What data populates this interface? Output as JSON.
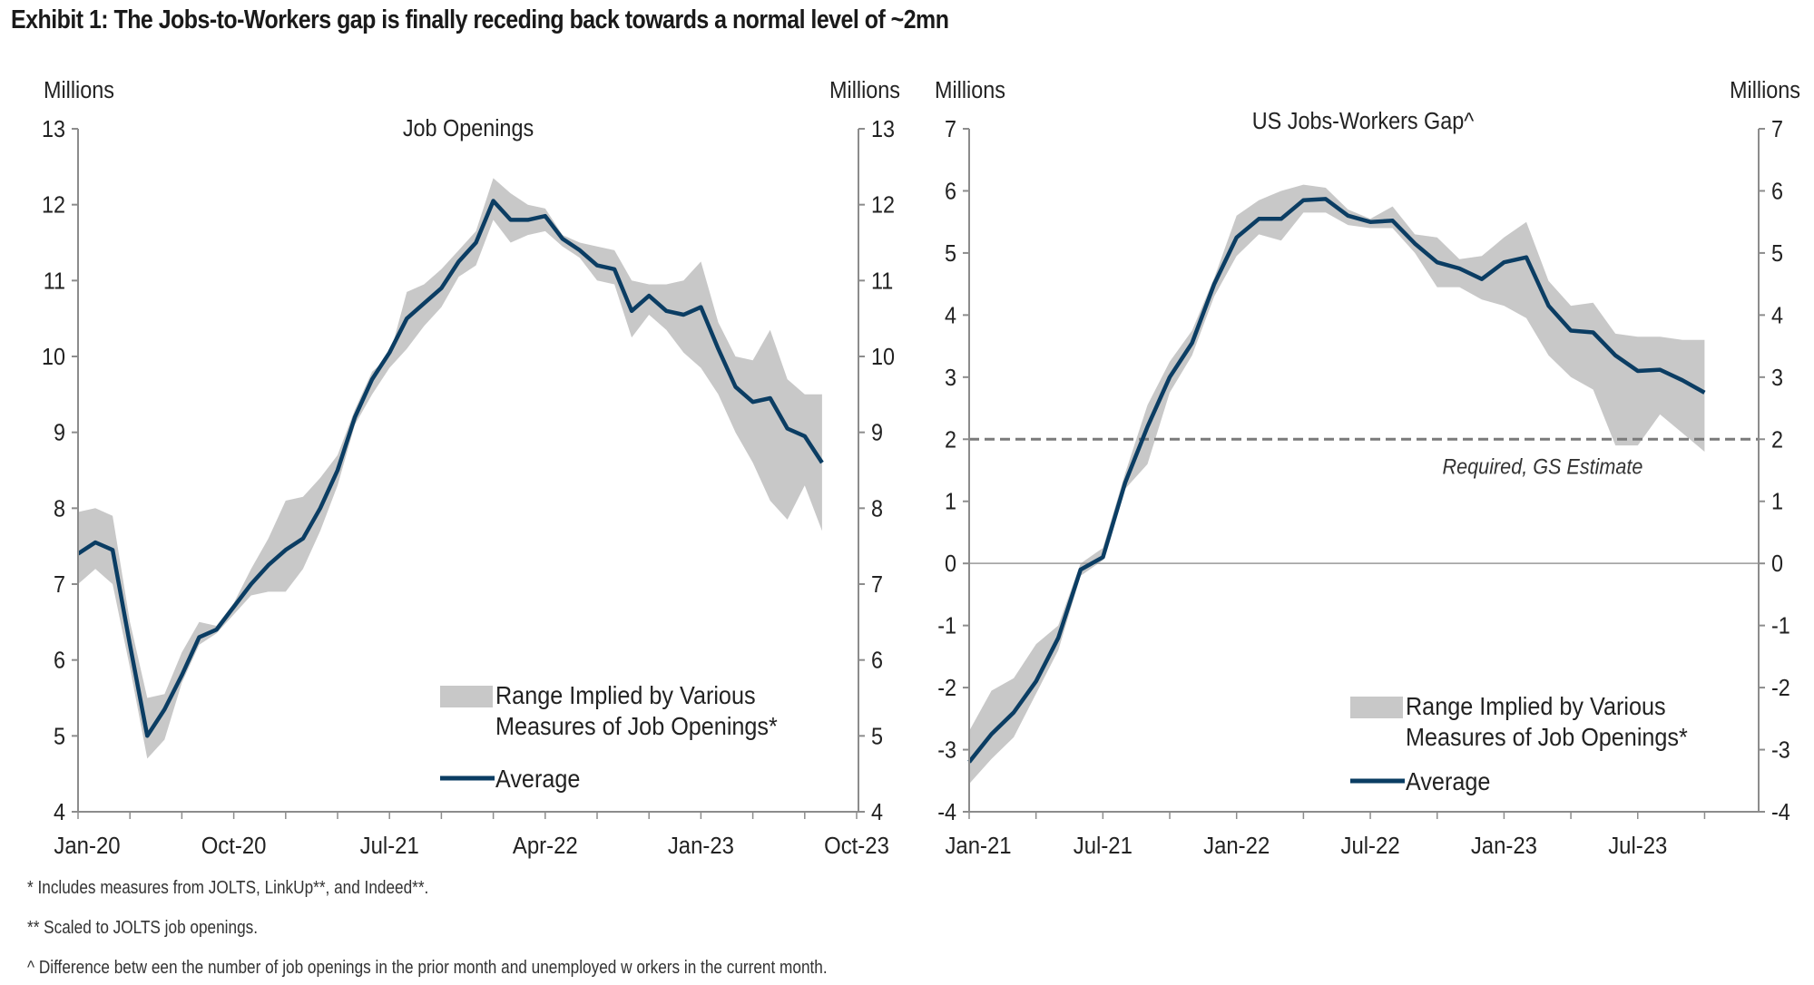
{
  "title": "Exhibit 1: The Jobs-to-Workers gap is finally receding back towards a normal level of ~2mn",
  "footnotes": [
    "* Includes measures from JOLTS, LinkUp**, and Indeed**.",
    "** Scaled to JOLTS job openings.",
    "^ Difference betw een the number of job openings in the prior month and unemployed w orkers in the current month."
  ],
  "colors": {
    "line": "#0b3d63",
    "band": "#c8c8c8",
    "axis": "#8c8c8c",
    "ref": "#7a7a7a"
  },
  "chart_data": [
    {
      "type": "area",
      "title": "Job Openings",
      "ylabel_left": "Millions",
      "ylabel_right": "Millions",
      "ylim": [
        4,
        13
      ],
      "yticks": [
        4,
        5,
        6,
        7,
        8,
        9,
        10,
        11,
        12,
        13
      ],
      "x_start": "Jan-20",
      "x_months_span": 45,
      "xtick_labels": [
        "Jan-20",
        "Oct-20",
        "Jul-21",
        "Apr-22",
        "Jan-23",
        "Oct-23"
      ],
      "xtick_label_months": [
        0,
        9,
        18,
        27,
        36,
        45
      ],
      "legend": {
        "band": "Range Implied by Various\nMeasures of Job Openings*",
        "line": "Average",
        "placement": "bottom-right"
      },
      "series": [
        {
          "name": "Average",
          "start_month": 0,
          "values": [
            7.4,
            7.55,
            7.45,
            6.2,
            5.0,
            5.35,
            5.8,
            6.3,
            6.4,
            6.7,
            7.0,
            7.25,
            7.45,
            7.6,
            8.0,
            8.5,
            9.2,
            9.7,
            10.05,
            10.5,
            10.7,
            10.9,
            11.25,
            11.5,
            12.05,
            11.8,
            11.8,
            11.85,
            11.55,
            11.4,
            11.2,
            11.15,
            10.6,
            10.8,
            10.6,
            10.55,
            10.65,
            10.1,
            9.6,
            9.4,
            9.45,
            9.05,
            8.95,
            8.6
          ]
        },
        {
          "name": "Range high",
          "start_month": 0,
          "values": [
            7.95,
            8.0,
            7.9,
            6.5,
            5.5,
            5.55,
            6.1,
            6.5,
            6.45,
            6.75,
            7.2,
            7.6,
            8.1,
            8.15,
            8.4,
            8.7,
            9.3,
            9.8,
            10.0,
            10.85,
            10.95,
            11.15,
            11.4,
            11.65,
            12.35,
            12.15,
            12.0,
            11.95,
            11.6,
            11.5,
            11.45,
            11.4,
            11.0,
            10.95,
            10.95,
            11.0,
            11.25,
            10.45,
            10.0,
            9.95,
            10.35,
            9.7,
            9.5,
            9.5
          ]
        },
        {
          "name": "Range low",
          "start_month": 0,
          "values": [
            7.0,
            7.2,
            7.0,
            5.9,
            4.7,
            4.95,
            5.7,
            6.2,
            6.35,
            6.6,
            6.85,
            6.9,
            6.9,
            7.2,
            7.7,
            8.3,
            9.1,
            9.5,
            9.85,
            10.1,
            10.4,
            10.65,
            11.05,
            11.2,
            11.8,
            11.5,
            11.6,
            11.65,
            11.45,
            11.3,
            11.0,
            10.95,
            10.25,
            10.55,
            10.35,
            10.05,
            9.85,
            9.5,
            9.0,
            8.6,
            8.1,
            7.85,
            8.3,
            7.7
          ]
        }
      ]
    },
    {
      "type": "area",
      "title": "US Jobs-Workers  Gap^",
      "ylabel_left": "Millions",
      "ylabel_right": "Millions",
      "ylim": [
        -4,
        7
      ],
      "yticks": [
        -4,
        -3,
        -2,
        -1,
        0,
        1,
        2,
        3,
        4,
        5,
        6,
        7
      ],
      "x_start": "Jan-21",
      "x_months_span": 34,
      "xtick_labels": [
        "Jan-21",
        "Jul-21",
        "Jan-22",
        "Jul-22",
        "Jan-23",
        "Jul-23"
      ],
      "xtick_label_months": [
        0,
        6,
        12,
        18,
        24,
        30
      ],
      "reference_line": {
        "value": 2,
        "label": "Required, GS Estimate",
        "style": "dashed"
      },
      "zero_line": true,
      "legend": {
        "band": "Range Implied by Various\nMeasures of Job Openings*",
        "line": "Average",
        "placement": "bottom-right"
      },
      "series": [
        {
          "name": "Average",
          "start_month": 0,
          "values": [
            -3.2,
            -2.75,
            -2.4,
            -1.9,
            -1.2,
            -0.1,
            0.1,
            1.3,
            2.2,
            3.0,
            3.55,
            4.5,
            5.25,
            5.55,
            5.55,
            5.85,
            5.87,
            5.6,
            5.5,
            5.52,
            5.15,
            4.85,
            4.75,
            4.58,
            4.85,
            4.93,
            4.15,
            3.75,
            3.72,
            3.35,
            3.1,
            3.12,
            2.95,
            2.75
          ]
        },
        {
          "name": "Range high",
          "start_month": 0,
          "values": [
            -2.7,
            -2.05,
            -1.85,
            -1.3,
            -1.0,
            0.0,
            0.25,
            1.45,
            2.55,
            3.25,
            3.75,
            4.6,
            5.6,
            5.85,
            6.0,
            6.1,
            6.05,
            5.7,
            5.55,
            5.75,
            5.3,
            5.25,
            4.9,
            4.95,
            5.25,
            5.5,
            4.55,
            4.15,
            4.2,
            3.7,
            3.65,
            3.65,
            3.6,
            3.6
          ]
        },
        {
          "name": "Range low",
          "start_month": 0,
          "values": [
            -3.55,
            -3.15,
            -2.8,
            -2.1,
            -1.4,
            -0.2,
            0.05,
            1.2,
            1.6,
            2.75,
            3.35,
            4.3,
            4.95,
            5.3,
            5.2,
            5.65,
            5.65,
            5.45,
            5.4,
            5.4,
            5.0,
            4.45,
            4.45,
            4.25,
            4.15,
            3.95,
            3.35,
            3.0,
            2.8,
            1.9,
            1.9,
            2.4,
            2.1,
            1.8
          ]
        }
      ]
    }
  ]
}
